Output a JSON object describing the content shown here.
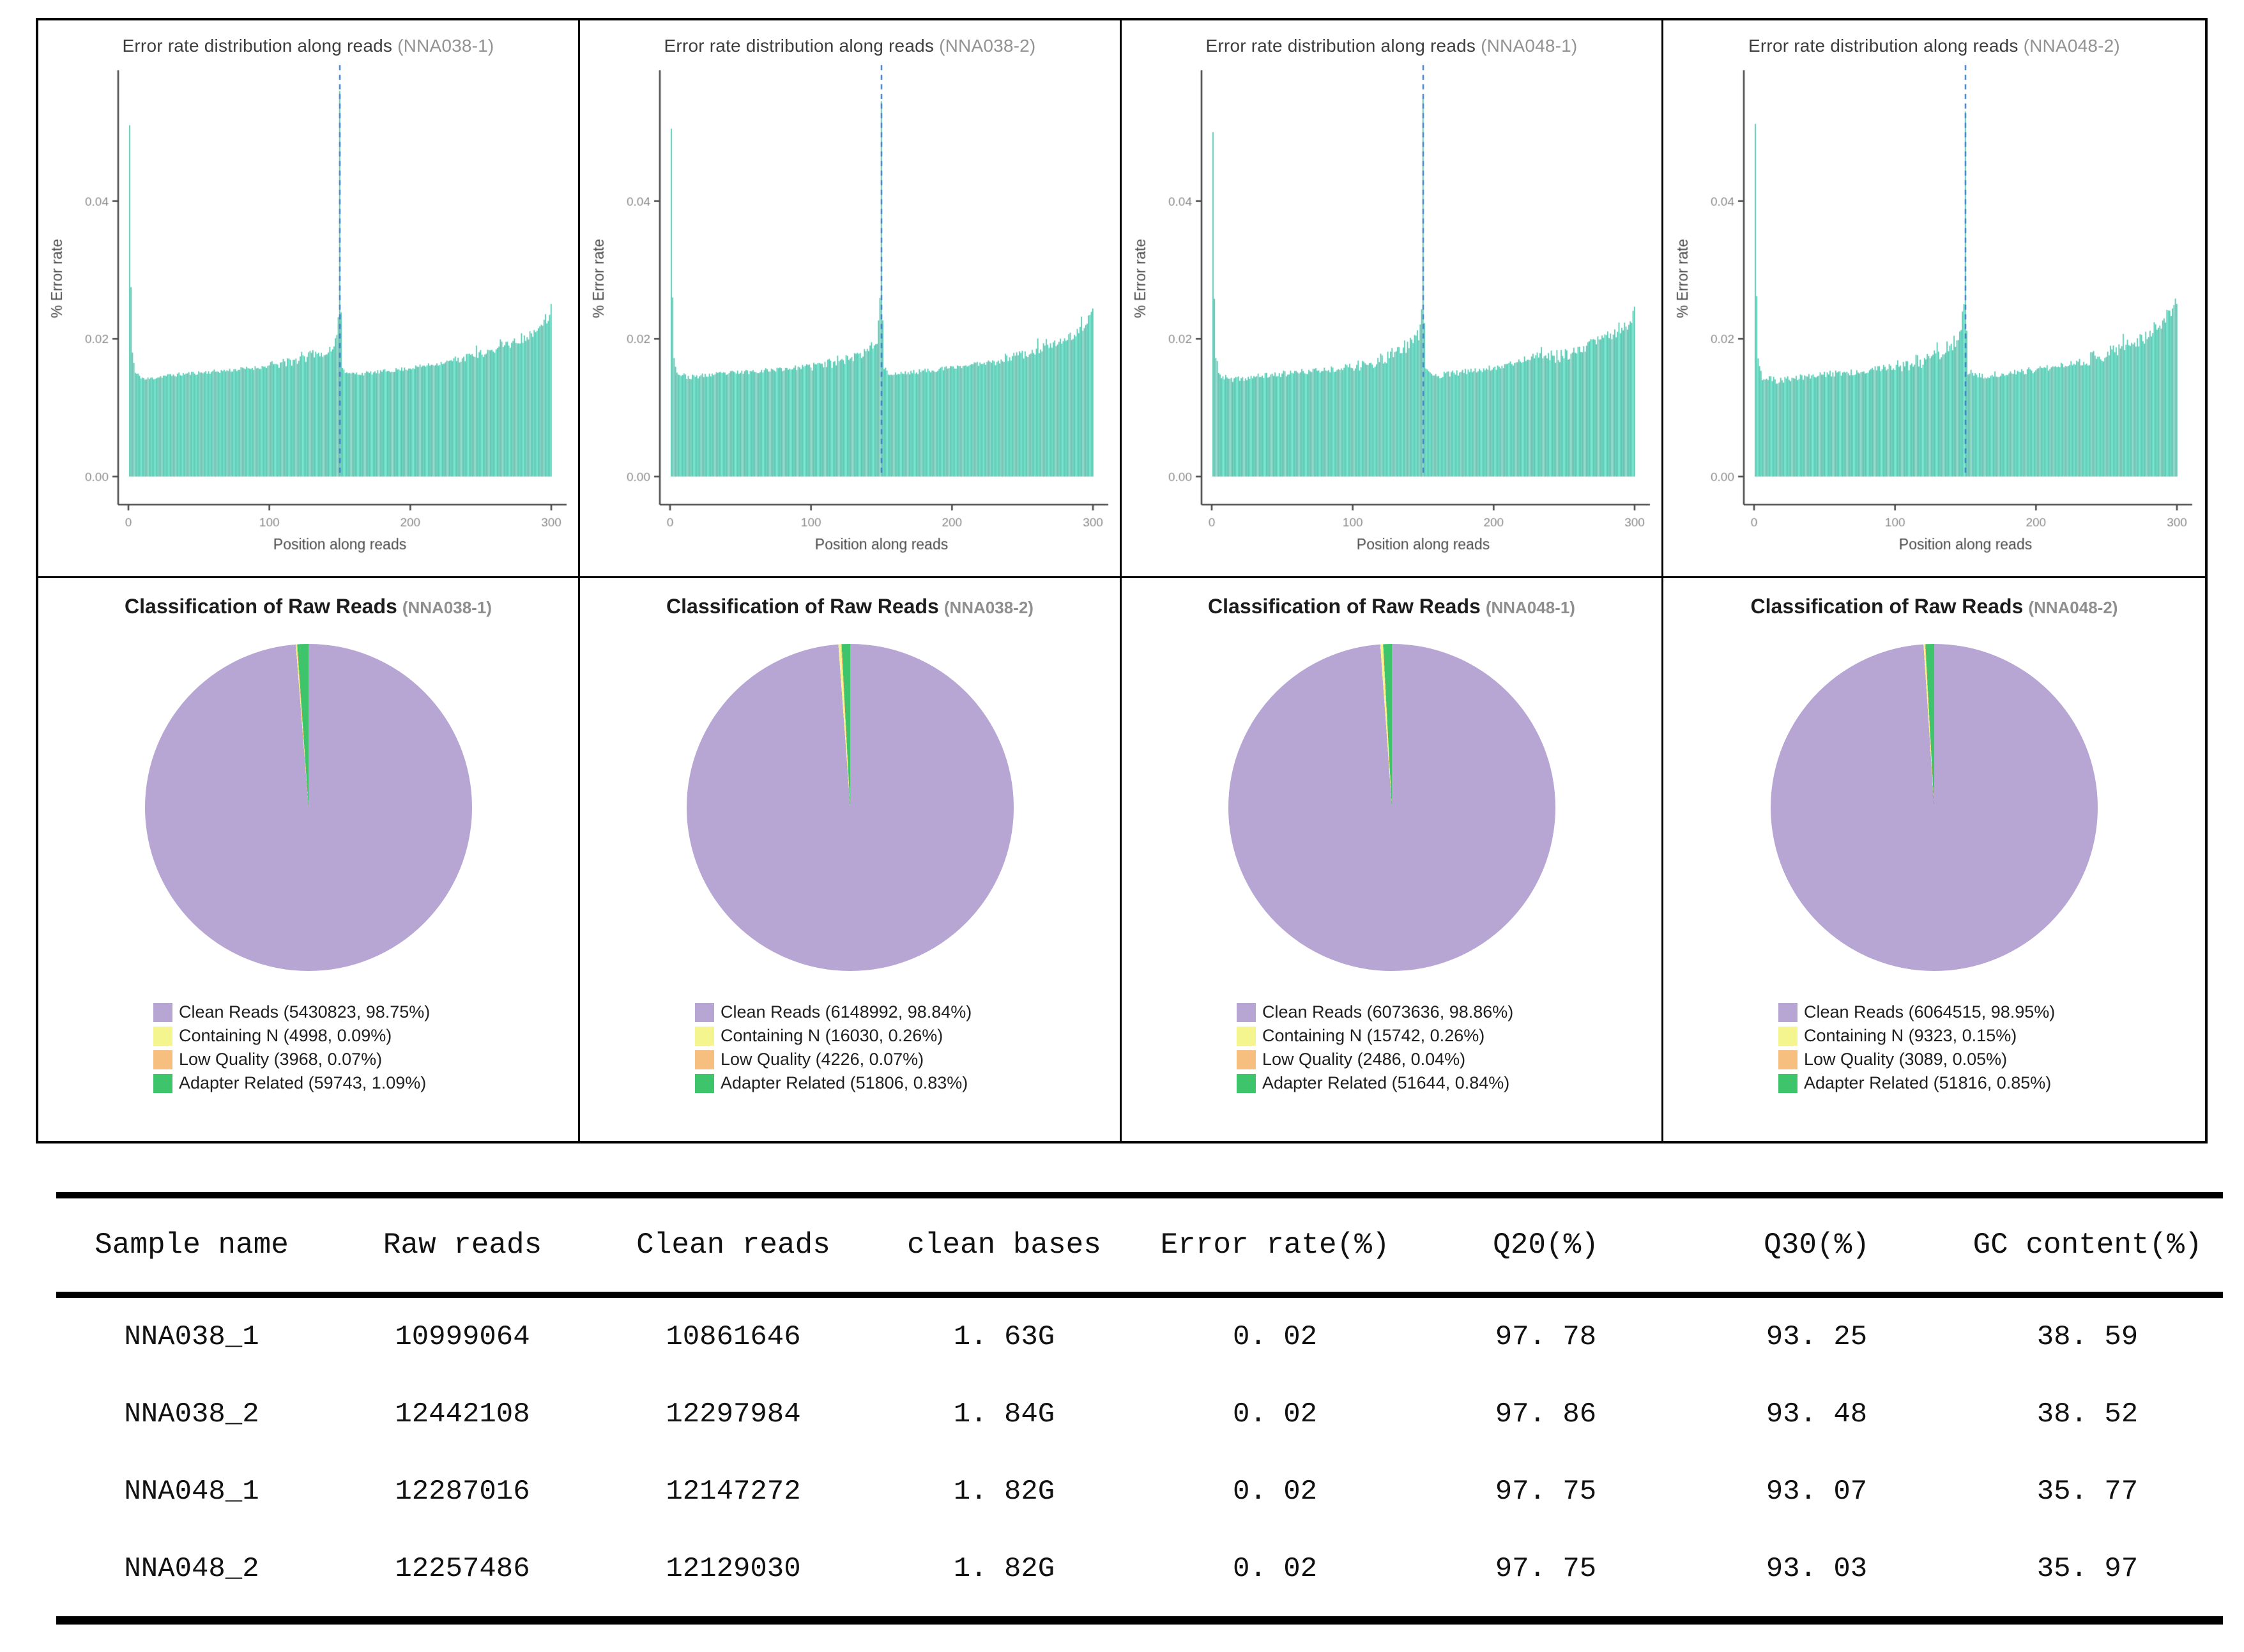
{
  "accent_colors": {
    "bar_teal": "#4dc6ae",
    "dashed_blue": "#3f7fc4",
    "axis_gray": "#4b4b4b",
    "tick_label_gray": "#8a8a8a"
  },
  "chart_data": [
    {
      "type": "bar",
      "title_main": "Error rate distribution along reads",
      "sample_label": "(NNA038-1)",
      "xlabel": "Position along reads",
      "ylabel": "% Error rate",
      "xlim": [
        0,
        300
      ],
      "ylim": [
        0,
        0.0575
      ],
      "xticks": [
        0,
        100,
        200,
        300
      ],
      "yticks": [
        "0.00",
        "0.02",
        "0.04"
      ],
      "ytick_values": [
        0,
        0.02,
        0.04
      ],
      "bar_color": "#4dc6ae",
      "vline": {
        "x": 150,
        "color": "#3f7fc4",
        "style": "dashed"
      },
      "grid": false,
      "seed": 11,
      "noise": 0.0003,
      "keypoints": [
        [
          1,
          0.051
        ],
        [
          2,
          0.0275
        ],
        [
          3,
          0.018
        ],
        [
          5,
          0.015
        ],
        [
          12,
          0.0141
        ],
        [
          25,
          0.0146
        ],
        [
          45,
          0.015
        ],
        [
          70,
          0.0154
        ],
        [
          95,
          0.0159
        ],
        [
          115,
          0.0166
        ],
        [
          125,
          0.0172
        ],
        [
          133,
          0.018
        ],
        [
          138,
          0.0176
        ],
        [
          144,
          0.0186
        ],
        [
          148,
          0.02
        ],
        [
          149,
          0.023
        ],
        [
          150,
          0.056
        ],
        [
          151,
          0.024
        ],
        [
          152,
          0.016
        ],
        [
          155,
          0.0149
        ],
        [
          170,
          0.015
        ],
        [
          195,
          0.0156
        ],
        [
          220,
          0.0164
        ],
        [
          245,
          0.0175
        ],
        [
          265,
          0.0188
        ],
        [
          280,
          0.02
        ],
        [
          290,
          0.0212
        ],
        [
          296,
          0.0224
        ],
        [
          299,
          0.0232
        ],
        [
          300,
          0.0245
        ]
      ]
    },
    {
      "type": "bar",
      "title_main": "Error rate distribution along reads",
      "sample_label": "(NNA038-2)",
      "xlabel": "Position along reads",
      "ylabel": "% Error rate",
      "xlim": [
        0,
        300
      ],
      "ylim": [
        0,
        0.0575
      ],
      "xticks": [
        0,
        100,
        200,
        300
      ],
      "yticks": [
        "0.00",
        "0.02",
        "0.04"
      ],
      "ytick_values": [
        0,
        0.02,
        0.04
      ],
      "bar_color": "#4dc6ae",
      "vline": {
        "x": 150,
        "color": "#3f7fc4",
        "style": "dashed"
      },
      "grid": false,
      "seed": 23,
      "noise": 0.00035,
      "keypoints": [
        [
          1,
          0.0505
        ],
        [
          2,
          0.026
        ],
        [
          3,
          0.0175
        ],
        [
          5,
          0.015
        ],
        [
          14,
          0.0144
        ],
        [
          30,
          0.0148
        ],
        [
          60,
          0.0153
        ],
        [
          90,
          0.0158
        ],
        [
          110,
          0.0163
        ],
        [
          125,
          0.017
        ],
        [
          135,
          0.0177
        ],
        [
          142,
          0.0185
        ],
        [
          147,
          0.02
        ],
        [
          149,
          0.026
        ],
        [
          150,
          0.0545
        ],
        [
          151,
          0.023
        ],
        [
          152,
          0.0158
        ],
        [
          156,
          0.0148
        ],
        [
          175,
          0.0152
        ],
        [
          200,
          0.0158
        ],
        [
          225,
          0.0166
        ],
        [
          250,
          0.0177
        ],
        [
          270,
          0.019
        ],
        [
          283,
          0.0202
        ],
        [
          292,
          0.0214
        ],
        [
          297,
          0.0224
        ],
        [
          300,
          0.0238
        ]
      ]
    },
    {
      "type": "bar",
      "title_main": "Error rate distribution along reads",
      "sample_label": "(NNA048-1)",
      "xlabel": "Position along reads",
      "ylabel": "% Error rate",
      "xlim": [
        0,
        300
      ],
      "ylim": [
        0,
        0.0575
      ],
      "xticks": [
        0,
        100,
        200,
        300
      ],
      "yticks": [
        "0.00",
        "0.02",
        "0.04"
      ],
      "ytick_values": [
        0,
        0.02,
        0.04
      ],
      "bar_color": "#4dc6ae",
      "vline": {
        "x": 150,
        "color": "#3f7fc4",
        "style": "dashed"
      },
      "grid": false,
      "seed": 37,
      "noise": 0.00045,
      "keypoints": [
        [
          1,
          0.05
        ],
        [
          2,
          0.0258
        ],
        [
          3,
          0.0172
        ],
        [
          6,
          0.0146
        ],
        [
          15,
          0.014
        ],
        [
          35,
          0.0146
        ],
        [
          65,
          0.0152
        ],
        [
          90,
          0.0157
        ],
        [
          110,
          0.0164
        ],
        [
          122,
          0.0172
        ],
        [
          130,
          0.018
        ],
        [
          137,
          0.0188
        ],
        [
          143,
          0.0196
        ],
        [
          147,
          0.0206
        ],
        [
          149,
          0.024
        ],
        [
          150,
          0.055
        ],
        [
          151,
          0.022
        ],
        [
          152,
          0.0155
        ],
        [
          158,
          0.0146
        ],
        [
          180,
          0.0152
        ],
        [
          205,
          0.016
        ],
        [
          225,
          0.0172
        ],
        [
          235,
          0.018
        ],
        [
          242,
          0.0172
        ],
        [
          255,
          0.018
        ],
        [
          270,
          0.0192
        ],
        [
          282,
          0.0203
        ],
        [
          291,
          0.0214
        ],
        [
          297,
          0.0226
        ],
        [
          300,
          0.024
        ]
      ]
    },
    {
      "type": "bar",
      "title_main": "Error rate distribution along reads",
      "sample_label": "(NNA048-2)",
      "xlabel": "Position along reads",
      "ylabel": "% Error rate",
      "xlim": [
        0,
        300
      ],
      "ylim": [
        0,
        0.0575
      ],
      "xticks": [
        0,
        100,
        200,
        300
      ],
      "yticks": [
        "0.00",
        "0.02",
        "0.04"
      ],
      "ytick_values": [
        0,
        0.02,
        0.04
      ],
      "bar_color": "#4dc6ae",
      "vline": {
        "x": 150,
        "color": "#3f7fc4",
        "style": "dashed"
      },
      "grid": false,
      "seed": 51,
      "noise": 0.0005,
      "keypoints": [
        [
          1,
          0.0512
        ],
        [
          2,
          0.0262
        ],
        [
          3,
          0.0175
        ],
        [
          6,
          0.0144
        ],
        [
          16,
          0.0139
        ],
        [
          40,
          0.0146
        ],
        [
          70,
          0.0152
        ],
        [
          95,
          0.0158
        ],
        [
          112,
          0.0164
        ],
        [
          124,
          0.0172
        ],
        [
          132,
          0.018
        ],
        [
          139,
          0.019
        ],
        [
          144,
          0.0198
        ],
        [
          147,
          0.0208
        ],
        [
          149,
          0.025
        ],
        [
          150,
          0.053
        ],
        [
          151,
          0.0215
        ],
        [
          152,
          0.0153
        ],
        [
          158,
          0.0145
        ],
        [
          180,
          0.015
        ],
        [
          205,
          0.0157
        ],
        [
          228,
          0.0166
        ],
        [
          248,
          0.0177
        ],
        [
          263,
          0.0188
        ],
        [
          275,
          0.02
        ],
        [
          285,
          0.0212
        ],
        [
          292,
          0.0224
        ],
        [
          297,
          0.0238
        ],
        [
          300,
          0.0255
        ]
      ]
    },
    {
      "type": "pie",
      "title_main": "Classification of Raw Reads",
      "sample_label": "(NNA038-1)",
      "slices": [
        {
          "label": "Clean Reads",
          "count": 5430823,
          "percent": 98.75,
          "color": "#b7a5d3"
        },
        {
          "label": "Containing N",
          "count": 4998,
          "percent": 0.09,
          "color": "#f5f58f"
        },
        {
          "label": "Low Quality",
          "count": 3968,
          "percent": 0.07,
          "color": "#f6bf7f"
        },
        {
          "label": "Adapter Related",
          "count": 59743,
          "percent": 1.09,
          "color": "#3ec46a"
        }
      ],
      "legend": [
        "Clean Reads (5430823, 98.75%)",
        "Containing N (4998, 0.09%)",
        "Low Quality (3968, 0.07%)",
        "Adapter Related (59743, 1.09%)"
      ]
    },
    {
      "type": "pie",
      "title_main": "Classification of Raw Reads",
      "sample_label": "(NNA038-2)",
      "slices": [
        {
          "label": "Clean Reads",
          "count": 6148992,
          "percent": 98.84,
          "color": "#b7a5d3"
        },
        {
          "label": "Containing N",
          "count": 16030,
          "percent": 0.26,
          "color": "#f5f58f"
        },
        {
          "label": "Low Quality",
          "count": 4226,
          "percent": 0.07,
          "color": "#f6bf7f"
        },
        {
          "label": "Adapter Related",
          "count": 51806,
          "percent": 0.83,
          "color": "#3ec46a"
        }
      ],
      "legend": [
        "Clean Reads (6148992, 98.84%)",
        "Containing N (16030, 0.26%)",
        "Low Quality (4226, 0.07%)",
        "Adapter Related (51806, 0.83%)"
      ]
    },
    {
      "type": "pie",
      "title_main": "Classification of Raw Reads",
      "sample_label": "(NNA048-1)",
      "slices": [
        {
          "label": "Clean Reads",
          "count": 6073636,
          "percent": 98.86,
          "color": "#b7a5d3"
        },
        {
          "label": "Containing N",
          "count": 15742,
          "percent": 0.26,
          "color": "#f5f58f"
        },
        {
          "label": "Low Quality",
          "count": 2486,
          "percent": 0.04,
          "color": "#f6bf7f"
        },
        {
          "label": "Adapter Related",
          "count": 51644,
          "percent": 0.84,
          "color": "#3ec46a"
        }
      ],
      "legend": [
        "Clean Reads (6073636, 98.86%)",
        "Containing N (15742, 0.26%)",
        "Low Quality (2486, 0.04%)",
        "Adapter Related (51644, 0.84%)"
      ]
    },
    {
      "type": "pie",
      "title_main": "Classification of Raw Reads",
      "sample_label": "(NNA048-2)",
      "slices": [
        {
          "label": "Clean Reads",
          "count": 6064515,
          "percent": 98.95,
          "color": "#b7a5d3"
        },
        {
          "label": "Containing N",
          "count": 9323,
          "percent": 0.15,
          "color": "#f5f58f"
        },
        {
          "label": "Low Quality",
          "count": 3089,
          "percent": 0.05,
          "color": "#f6bf7f"
        },
        {
          "label": "Adapter Related",
          "count": 51816,
          "percent": 0.85,
          "color": "#3ec46a"
        }
      ],
      "legend": [
        "Clean Reads (6064515, 98.95%)",
        "Containing N (9323, 0.15%)",
        "Low Quality (3089, 0.05%)",
        "Adapter Related (51816, 0.85%)"
      ]
    }
  ],
  "table": {
    "headers": [
      "Sample name",
      "Raw reads",
      "Clean reads",
      "clean bases",
      "Error rate(%)",
      "Q20(%)",
      "Q30(%)",
      "GC content(%)"
    ],
    "rows": [
      [
        "NNA038_1",
        "10999064",
        "10861646",
        "1. 63G",
        "0. 02",
        "97. 78",
        "93. 25",
        "38. 59"
      ],
      [
        "NNA038_2",
        "12442108",
        "12297984",
        "1. 84G",
        "0. 02",
        "97. 86",
        "93. 48",
        "38. 52"
      ],
      [
        "NNA048_1",
        "12287016",
        "12147272",
        "1. 82G",
        "0. 02",
        "97. 75",
        "93. 07",
        "35. 77"
      ],
      [
        "NNA048_2",
        "12257486",
        "12129030",
        "1. 82G",
        "0. 02",
        "97. 75",
        "93. 03",
        "35. 97"
      ]
    ]
  }
}
